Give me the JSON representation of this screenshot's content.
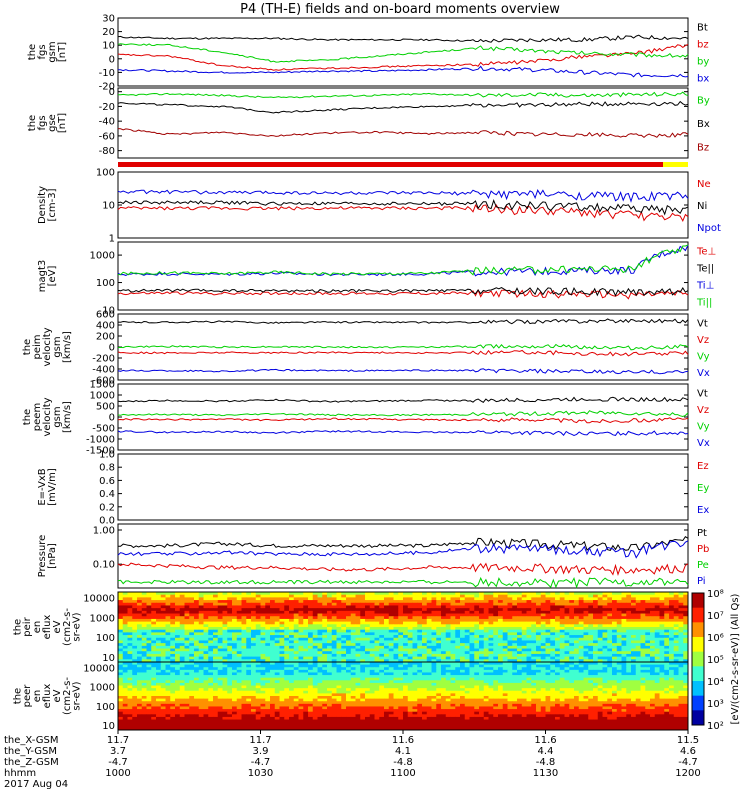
{
  "title": "P4 (TH-E) fields and on-board moments overview",
  "date_label": "2017 Aug 04",
  "colors": {
    "black": "#000000",
    "red": "#e00000",
    "green": "#00d000",
    "blue": "#0000e0",
    "darkred": "#a00000",
    "yellow": "#ffff00"
  },
  "chart_data": [
    {
      "id": "fgs_gsm",
      "type": "line",
      "ylabel": [
        "the",
        "fgs",
        "gsm",
        "[nT]"
      ],
      "ylim": [
        -20,
        30
      ],
      "ticks": [
        "30",
        "20",
        "10",
        "0",
        "-10",
        "-20"
      ],
      "tick_values": [
        30,
        20,
        10,
        0,
        -10,
        -20
      ],
      "series": [
        {
          "name": "Bt",
          "color": "black",
          "values": [
            16,
            15,
            15,
            15,
            14,
            14,
            14,
            13,
            14,
            14,
            16,
            15
          ]
        },
        {
          "name": "bz",
          "color": "red",
          "values": [
            3,
            2,
            -5,
            -8,
            -7,
            -6,
            -5,
            -4,
            -2,
            2,
            4,
            10
          ]
        },
        {
          "name": "by",
          "color": "green",
          "values": [
            11,
            10,
            5,
            -2,
            -1,
            2,
            5,
            8,
            6,
            4,
            3,
            2
          ]
        },
        {
          "name": "bx",
          "color": "blue",
          "values": [
            -8,
            -9,
            -10,
            -10,
            -9,
            -9,
            -8,
            -7,
            -8,
            -10,
            -12,
            -12
          ]
        }
      ]
    },
    {
      "id": "fgs_gse",
      "type": "line",
      "ylabel": [
        "the",
        "fgs",
        "gse",
        "[nT]"
      ],
      "ylim": [
        -90,
        5
      ],
      "ticks": [
        "0",
        "-20",
        "-40",
        "-60",
        "-80"
      ],
      "tick_values": [
        0,
        -20,
        -40,
        -60,
        -80
      ],
      "series": [
        {
          "name": "By",
          "color": "green",
          "values": [
            -5,
            -3,
            -5,
            -8,
            -6,
            -5,
            -3,
            -5,
            -4,
            -5,
            -4,
            -3
          ]
        },
        {
          "name": "Bx",
          "color": "black",
          "values": [
            -15,
            -18,
            -20,
            -28,
            -25,
            -22,
            -20,
            -18,
            -18,
            -17,
            -16,
            -16
          ]
        },
        {
          "name": "Bz",
          "color": "darkred",
          "values": [
            -50,
            -58,
            -55,
            -60,
            -56,
            -55,
            -57,
            -55,
            -58,
            -58,
            -60,
            -58
          ]
        }
      ]
    },
    {
      "id": "density",
      "type": "line",
      "log": true,
      "ylabel": [
        "Density",
        "[cm-3]"
      ],
      "ylim": [
        1,
        100
      ],
      "ticks": [
        "100",
        "10",
        "1"
      ],
      "tick_values": [
        100,
        10,
        1
      ],
      "series": [
        {
          "name": "Ne",
          "color": "red",
          "values": [
            8,
            8,
            8,
            8,
            8,
            8,
            8,
            8,
            7,
            6,
            5,
            4
          ]
        },
        {
          "name": "Ni",
          "color": "black",
          "values": [
            12,
            12,
            12,
            11,
            11,
            11,
            11,
            11,
            10,
            9,
            8,
            7
          ]
        },
        {
          "name": "Npot",
          "color": "blue",
          "values": [
            25,
            25,
            24,
            24,
            23,
            23,
            23,
            22,
            22,
            20,
            18,
            20
          ]
        }
      ]
    },
    {
      "id": "temperature",
      "type": "line",
      "log": true,
      "ylabel": [
        "magt3",
        "[eV]"
      ],
      "ylim": [
        10,
        3000
      ],
      "ticks": [
        "1000",
        "100",
        "10"
      ],
      "tick_values": [
        1000,
        100,
        10
      ],
      "series": [
        {
          "name": "Te⊥",
          "color": "red",
          "values": [
            40,
            42,
            40,
            41,
            40,
            40,
            40,
            42,
            40,
            38,
            36,
            40
          ]
        },
        {
          "name": "Te||",
          "color": "black",
          "values": [
            50,
            52,
            50,
            51,
            50,
            50,
            50,
            52,
            50,
            48,
            46,
            50
          ]
        },
        {
          "name": "Ti⊥",
          "color": "blue",
          "values": [
            200,
            210,
            200,
            220,
            200,
            200,
            210,
            250,
            260,
            280,
            300,
            2000
          ]
        },
        {
          "name": "Ti||",
          "color": "green",
          "values": [
            210,
            230,
            210,
            240,
            210,
            210,
            220,
            280,
            300,
            320,
            330,
            1800
          ]
        }
      ]
    },
    {
      "id": "velocity_peim",
      "type": "line",
      "ylabel": [
        "the",
        "peim",
        "velocity",
        "gsm",
        "[km/s]"
      ],
      "ylim": [
        -600,
        600
      ],
      "ticks": [
        "600",
        "400",
        "200",
        "0",
        "-200",
        "-400",
        "-600"
      ],
      "tick_values": [
        600,
        400,
        200,
        0,
        -200,
        -400,
        -600
      ],
      "series": [
        {
          "name": "Vt",
          "color": "black",
          "values": [
            450,
            450,
            460,
            440,
            450,
            450,
            445,
            450,
            460,
            470,
            480,
            470
          ]
        },
        {
          "name": "Vz",
          "color": "red",
          "values": [
            -100,
            -110,
            -100,
            -105,
            -100,
            -100,
            -110,
            -100,
            -90,
            -120,
            -130,
            -110
          ]
        },
        {
          "name": "Vy",
          "color": "green",
          "values": [
            0,
            10,
            0,
            5,
            0,
            -5,
            0,
            10,
            20,
            0,
            -20,
            10
          ]
        },
        {
          "name": "Vx",
          "color": "blue",
          "values": [
            -430,
            -430,
            -440,
            -420,
            -430,
            -430,
            -425,
            -430,
            -440,
            -450,
            -460,
            -450
          ]
        }
      ]
    },
    {
      "id": "velocity_peem",
      "type": "line",
      "ylabel": [
        "the",
        "peem",
        "velocity",
        "gsm",
        "[km/s]"
      ],
      "ylim": [
        -1500,
        1500
      ],
      "ticks": [
        "1500",
        "1000",
        "500",
        "0",
        "-500",
        "-1000",
        "-1500"
      ],
      "tick_values": [
        1500,
        1000,
        500,
        0,
        -500,
        -1000,
        -1500
      ],
      "series": [
        {
          "name": "Vt",
          "color": "black",
          "values": [
            700,
            750,
            720,
            780,
            700,
            720,
            760,
            740,
            780,
            820,
            800,
            780
          ]
        },
        {
          "name": "Vz",
          "color": "red",
          "values": [
            -100,
            -120,
            -100,
            -150,
            -80,
            -100,
            -120,
            -150,
            -100,
            -200,
            -150,
            -100
          ]
        },
        {
          "name": "Vy",
          "color": "green",
          "values": [
            100,
            120,
            80,
            150,
            100,
            80,
            100,
            120,
            150,
            200,
            180,
            100
          ]
        },
        {
          "name": "Vx",
          "color": "blue",
          "values": [
            -650,
            -700,
            -660,
            -720,
            -650,
            -660,
            -700,
            -680,
            -720,
            -760,
            -740,
            -700
          ]
        }
      ]
    },
    {
      "id": "efield",
      "type": "line",
      "ylabel": [
        "E=-VxB",
        "[mV/m]"
      ],
      "ylim": [
        0,
        1.0
      ],
      "ticks": [
        "1.0",
        "0.8",
        "0.6",
        "0.4",
        "0.2",
        "0.0"
      ],
      "tick_values": [
        1.0,
        0.8,
        0.6,
        0.4,
        0.2,
        0.0
      ],
      "series": [
        {
          "name": "Ez",
          "color": "red",
          "values": []
        },
        {
          "name": "Ey",
          "color": "green",
          "values": []
        },
        {
          "name": "Ex",
          "color": "blue",
          "values": []
        }
      ]
    },
    {
      "id": "pressure",
      "type": "line",
      "log": true,
      "ylabel": [
        "Pressure",
        "[nPa]"
      ],
      "ylim": [
        0.02,
        1.5
      ],
      "ticks": [
        "1.00",
        "0.10"
      ],
      "tick_values": [
        1.0,
        0.1
      ],
      "series": [
        {
          "name": "Pt",
          "color": "black",
          "values": [
            0.35,
            0.35,
            0.4,
            0.35,
            0.35,
            0.35,
            0.35,
            0.45,
            0.4,
            0.35,
            0.3,
            0.5
          ]
        },
        {
          "name": "Pb",
          "color": "red",
          "values": [
            0.1,
            0.09,
            0.08,
            0.08,
            0.07,
            0.07,
            0.08,
            0.08,
            0.08,
            0.07,
            0.07,
            0.08
          ]
        },
        {
          "name": "Pe",
          "color": "green",
          "values": [
            0.03,
            0.03,
            0.03,
            0.03,
            0.03,
            0.03,
            0.03,
            0.03,
            0.03,
            0.03,
            0.03,
            0.03
          ]
        },
        {
          "name": "Pi",
          "color": "blue",
          "values": [
            0.2,
            0.2,
            0.22,
            0.2,
            0.2,
            0.2,
            0.22,
            0.3,
            0.3,
            0.25,
            0.22,
            0.5
          ]
        }
      ]
    },
    {
      "id": "peir_spec",
      "type": "heatmap",
      "ylabel": [
        "the",
        "peir",
        "en",
        "eflux",
        "eV",
        "(cm2-s-",
        "sr-eV)"
      ],
      "ticks": [
        "10000",
        "1000",
        "100",
        "10"
      ],
      "tick_values": [
        10000,
        1000,
        100,
        10
      ]
    },
    {
      "id": "peer_spec",
      "type": "heatmap",
      "ylabel": [
        "the",
        "peer",
        "en",
        "eflux",
        "eV",
        "(cm2-s-",
        "sr-eV)"
      ],
      "ticks": [
        "10000",
        "1000",
        "100",
        "10"
      ],
      "tick_values": [
        10000,
        1000,
        100,
        10
      ]
    }
  ],
  "colorbar": {
    "label": "[eV/(cm2-s-sr-eV)] (All Qs)",
    "ticks": [
      "10⁸",
      "10⁷",
      "10⁶",
      "10⁵",
      "10⁴",
      "10³",
      "10²"
    ]
  },
  "x_axis": {
    "row_labels": [
      "the_X-GSM",
      "the_Y-GSM",
      "the_Z-GSM",
      "hhmm"
    ],
    "columns": [
      {
        "x": "11.7",
        "y": "3.7",
        "z": "-4.7",
        "t": "1000"
      },
      {
        "x": "11.7",
        "y": "3.9",
        "z": "-4.7",
        "t": "1030"
      },
      {
        "x": "11.6",
        "y": "4.1",
        "z": "-4.8",
        "t": "1100"
      },
      {
        "x": "11.6",
        "y": "4.4",
        "z": "-4.8",
        "t": "1130"
      },
      {
        "x": "11.5",
        "y": "4.6",
        "z": "-4.7",
        "t": "1200"
      }
    ]
  }
}
